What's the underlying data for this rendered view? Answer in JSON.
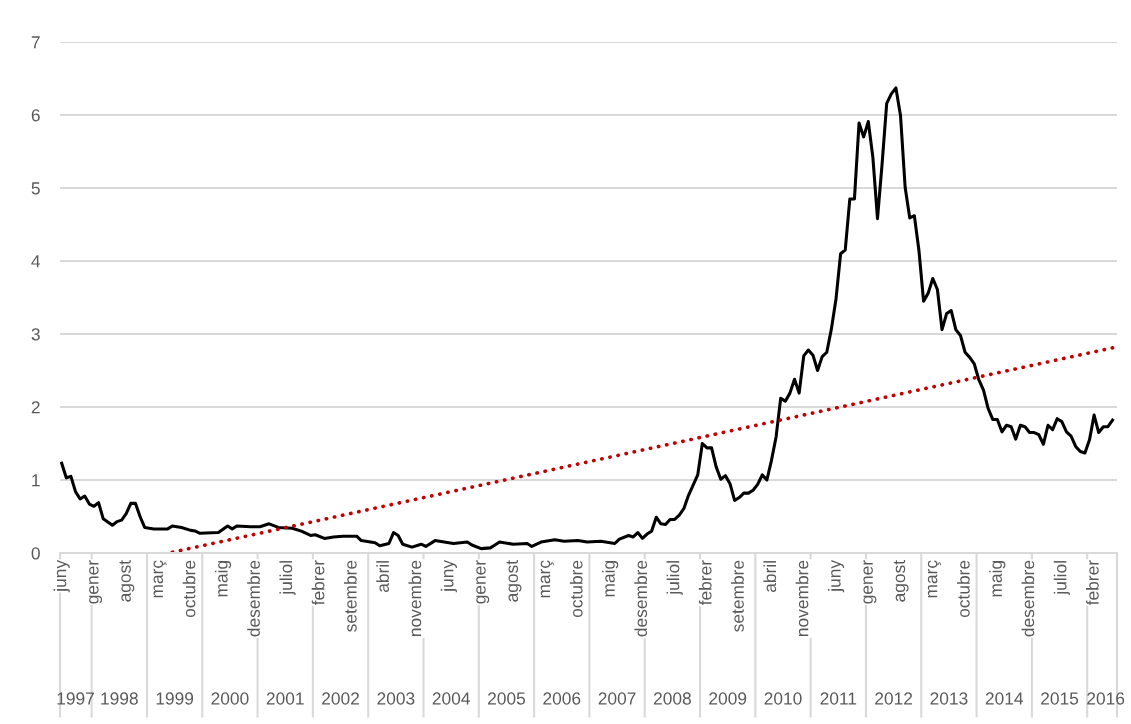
{
  "chart_data": {
    "type": "line",
    "series": [
      {
        "color": "#000000",
        "line_style": "solid",
        "x": [
          "1997-06",
          "1997-07",
          "1997-08",
          "1997-09",
          "1997-10",
          "1997-11",
          "1997-12",
          "1998-01",
          "1998-02",
          "1998-03",
          "1998-05",
          "1998-06",
          "1998-07",
          "1998-08",
          "1998-09",
          "1998-10",
          "1998-11",
          "1998-12",
          "1999-02",
          "1999-05",
          "1999-06",
          "1999-08",
          "1999-10",
          "1999-11",
          "1999-12",
          "2000-04",
          "2000-06",
          "2000-07",
          "2000-08",
          "2000-11",
          "2001-01",
          "2001-03",
          "2001-05",
          "2001-08",
          "2001-10",
          "2001-12",
          "2002-01",
          "2002-03",
          "2002-05",
          "2002-07",
          "2002-10",
          "2002-11",
          "2003-02",
          "2003-03",
          "2003-05",
          "2003-06",
          "2003-07",
          "2003-08",
          "2003-10",
          "2003-12",
          "2004-01",
          "2004-03",
          "2004-05",
          "2004-07",
          "2004-10",
          "2004-11",
          "2005-01",
          "2005-03",
          "2005-04",
          "2005-05",
          "2005-08",
          "2005-11",
          "2005-12",
          "2006-02",
          "2006-05",
          "2006-07",
          "2006-10",
          "2006-12",
          "2007-03",
          "2007-06",
          "2007-07",
          "2007-09",
          "2007-10",
          "2007-11",
          "2007-12",
          "2008-01",
          "2008-02",
          "2008-03",
          "2008-04",
          "2008-05",
          "2008-06",
          "2008-07",
          "2008-08",
          "2008-09",
          "2008-10",
          "2008-12",
          "2009-01",
          "2009-02",
          "2009-03",
          "2009-04",
          "2009-05",
          "2009-06",
          "2009-07",
          "2009-08",
          "2009-09",
          "2009-10",
          "2009-11",
          "2009-12",
          "2010-01",
          "2010-02",
          "2010-03",
          "2010-04",
          "2010-05",
          "2010-06",
          "2010-07",
          "2010-08",
          "2010-09",
          "2010-10",
          "2010-11",
          "2010-12",
          "2011-01",
          "2011-02",
          "2011-03",
          "2011-04",
          "2011-05",
          "2011-06",
          "2011-07",
          "2011-08",
          "2011-09",
          "2011-10",
          "2011-11",
          "2011-12",
          "2012-01",
          "2012-02",
          "2012-03",
          "2012-04",
          "2012-05",
          "2012-06",
          "2012-07",
          "2012-08",
          "2012-09",
          "2012-10",
          "2012-11",
          "2012-12",
          "2013-01",
          "2013-02",
          "2013-03",
          "2013-04",
          "2013-05",
          "2013-06",
          "2013-07",
          "2013-08",
          "2013-09",
          "2013-10",
          "2013-11",
          "2013-12",
          "2014-01",
          "2014-02",
          "2014-03",
          "2014-04",
          "2014-05",
          "2014-06",
          "2014-07",
          "2014-08",
          "2014-09",
          "2014-10",
          "2014-11",
          "2014-12",
          "2015-01",
          "2015-02",
          "2015-03",
          "2015-04",
          "2015-05",
          "2015-06",
          "2015-07",
          "2015-08",
          "2015-09",
          "2015-10",
          "2015-11",
          "2015-12",
          "2016-01",
          "2016-02",
          "2016-03",
          "2016-04",
          "2016-05",
          "2016-06"
        ],
        "values": [
          1.23,
          1.03,
          1.05,
          0.84,
          0.74,
          0.78,
          0.67,
          0.64,
          0.69,
          0.47,
          0.38,
          0.43,
          0.45,
          0.54,
          0.68,
          0.68,
          0.5,
          0.35,
          0.33,
          0.33,
          0.37,
          0.35,
          0.31,
          0.3,
          0.27,
          0.28,
          0.37,
          0.33,
          0.37,
          0.36,
          0.36,
          0.4,
          0.35,
          0.34,
          0.3,
          0.24,
          0.25,
          0.2,
          0.22,
          0.23,
          0.23,
          0.17,
          0.14,
          0.1,
          0.13,
          0.28,
          0.24,
          0.12,
          0.08,
          0.12,
          0.09,
          0.17,
          0.15,
          0.13,
          0.15,
          0.11,
          0.06,
          0.07,
          0.11,
          0.15,
          0.12,
          0.13,
          0.09,
          0.15,
          0.18,
          0.16,
          0.17,
          0.15,
          0.16,
          0.13,
          0.19,
          0.24,
          0.22,
          0.28,
          0.2,
          0.26,
          0.3,
          0.49,
          0.4,
          0.39,
          0.46,
          0.46,
          0.52,
          0.61,
          0.79,
          1.07,
          1.5,
          1.44,
          1.44,
          1.18,
          1.01,
          1.06,
          0.95,
          0.72,
          0.76,
          0.82,
          0.82,
          0.86,
          0.94,
          1.07,
          1.0,
          1.27,
          1.59,
          2.12,
          2.08,
          2.19,
          2.38,
          2.19,
          2.7,
          2.78,
          2.71,
          2.5,
          2.69,
          2.75,
          3.07,
          3.48,
          4.1,
          4.15,
          4.85,
          4.85,
          5.89,
          5.7,
          5.91,
          5.42,
          4.58,
          5.33,
          6.16,
          6.29,
          6.37,
          5.99,
          5.01,
          4.59,
          4.62,
          4.14,
          3.45,
          3.56,
          3.76,
          3.61,
          3.06,
          3.28,
          3.32,
          3.06,
          2.98,
          2.75,
          2.68,
          2.59,
          2.37,
          2.23,
          1.98,
          1.83,
          1.83,
          1.66,
          1.75,
          1.73,
          1.56,
          1.75,
          1.73,
          1.65,
          1.65,
          1.62,
          1.49,
          1.75,
          1.69,
          1.84,
          1.8,
          1.66,
          1.6,
          1.46,
          1.39,
          1.37,
          1.55,
          1.89,
          1.65,
          1.73,
          1.73,
          1.82
        ]
      },
      {
        "color": "#c00000",
        "line_style": "dotted",
        "x": [
          "1999-06",
          "2016-06"
        ],
        "values": [
          0.01,
          2.81
        ]
      }
    ],
    "xlim": [
      "1997-05-20",
      "2016-06-30"
    ],
    "xticks": [
      {
        "value": "1997-06",
        "label": "juny"
      },
      {
        "value": "1998-01",
        "label": "gener"
      },
      {
        "value": "1998-08",
        "label": "agost"
      },
      {
        "value": "1999-03",
        "label": "març"
      },
      {
        "value": "1999-10",
        "label": "octubre"
      },
      {
        "value": "2000-05",
        "label": "maig"
      },
      {
        "value": "2000-12",
        "label": "desembre"
      },
      {
        "value": "2001-07",
        "label": "juliol"
      },
      {
        "value": "2002-02",
        "label": "febrer"
      },
      {
        "value": "2002-09",
        "label": "setembre"
      },
      {
        "value": "2003-04",
        "label": "abril"
      },
      {
        "value": "2003-11",
        "label": "novembre"
      },
      {
        "value": "2004-06",
        "label": "juny"
      },
      {
        "value": "2005-01",
        "label": "gener"
      },
      {
        "value": "2005-08",
        "label": "agost"
      },
      {
        "value": "2006-03",
        "label": "març"
      },
      {
        "value": "2006-10",
        "label": "octubre"
      },
      {
        "value": "2007-05",
        "label": "maig"
      },
      {
        "value": "2007-12",
        "label": "desembre"
      },
      {
        "value": "2008-07",
        "label": "juliol"
      },
      {
        "value": "2009-02",
        "label": "febrer"
      },
      {
        "value": "2009-09",
        "label": "setembre"
      },
      {
        "value": "2010-04",
        "label": "abril"
      },
      {
        "value": "2010-11",
        "label": "novembre"
      },
      {
        "value": "2011-06",
        "label": "juny"
      },
      {
        "value": "2012-01",
        "label": "gener"
      },
      {
        "value": "2012-08",
        "label": "agost"
      },
      {
        "value": "2013-03",
        "label": "març"
      },
      {
        "value": "2013-10",
        "label": "octubre"
      },
      {
        "value": "2014-05",
        "label": "maig"
      },
      {
        "value": "2014-12",
        "label": "desembre"
      },
      {
        "value": "2015-07",
        "label": "juliol"
      },
      {
        "value": "2016-02",
        "label": "febrer"
      }
    ],
    "x2lim": [
      "1997-05-20",
      "2016-06-30"
    ],
    "x2ticks": [
      {
        "value": "1997-09",
        "label": "1997"
      },
      {
        "value": "1998-06-16",
        "label": "1998"
      },
      {
        "value": "1999-06-16",
        "label": "1999"
      },
      {
        "value": "2000-06-16",
        "label": "2000"
      },
      {
        "value": "2001-06-16",
        "label": "2001"
      },
      {
        "value": "2002-06-16",
        "label": "2002"
      },
      {
        "value": "2003-06-16",
        "label": "2003"
      },
      {
        "value": "2004-06-16",
        "label": "2004"
      },
      {
        "value": "2005-06-16",
        "label": "2005"
      },
      {
        "value": "2006-06-16",
        "label": "2006"
      },
      {
        "value": "2007-06-16",
        "label": "2007"
      },
      {
        "value": "2008-06-16",
        "label": "2008"
      },
      {
        "value": "2009-06-16",
        "label": "2009"
      },
      {
        "value": "2010-06-16",
        "label": "2010"
      },
      {
        "value": "2011-06-16",
        "label": "2011"
      },
      {
        "value": "2012-06-16",
        "label": "2012"
      },
      {
        "value": "2013-06-16",
        "label": "2013"
      },
      {
        "value": "2014-06-16",
        "label": "2014"
      },
      {
        "value": "2015-06-16",
        "label": "2015"
      },
      {
        "value": "2016-04-16",
        "label": "2016"
      }
    ],
    "ylim": [
      0,
      7
    ],
    "yticks": [
      0,
      1,
      2,
      3,
      4,
      5,
      6,
      7
    ],
    "grid": "y",
    "legend": false,
    "marker": "none"
  }
}
